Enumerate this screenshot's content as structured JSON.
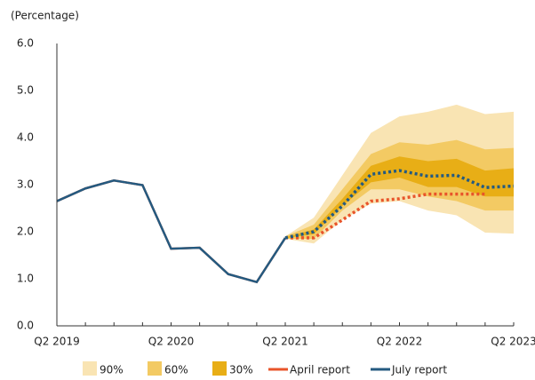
{
  "chart_data": {
    "type": "fan",
    "y_label": "(Percentage)",
    "categories": [
      "Q2 2019",
      null,
      null,
      null,
      "Q2 2020",
      null,
      null,
      null,
      "Q2 2021",
      null,
      null,
      null,
      "Q2 2022",
      null,
      null,
      null,
      "Q2 2023"
    ],
    "ylim": [
      0,
      6
    ],
    "yticks": [
      {
        "value": 0,
        "label": "0.0"
      },
      {
        "value": 1,
        "label": "1.0"
      },
      {
        "value": 2,
        "label": "2.0"
      },
      {
        "value": 3,
        "label": "3.0"
      },
      {
        "value": 4,
        "label": "4.0"
      },
      {
        "value": 5,
        "label": "5.0"
      },
      {
        "value": 6,
        "label": "6.0"
      }
    ],
    "bands": [
      {
        "name": "90%",
        "color": "#f9e4b3",
        "upper": [
          null,
          null,
          null,
          null,
          null,
          null,
          null,
          null,
          1.9,
          2.3,
          3.2,
          4.1,
          4.45,
          4.55,
          4.7,
          4.5,
          4.55
        ],
        "lower": [
          null,
          null,
          null,
          null,
          null,
          null,
          null,
          null,
          1.85,
          1.75,
          2.25,
          2.6,
          2.65,
          2.45,
          2.35,
          1.98,
          1.96
        ]
      },
      {
        "name": "60%",
        "color": "#f3ca63",
        "upper": [
          null,
          null,
          null,
          null,
          null,
          null,
          null,
          null,
          1.9,
          2.15,
          2.9,
          3.65,
          3.9,
          3.85,
          3.95,
          3.75,
          3.78
        ],
        "lower": [
          null,
          null,
          null,
          null,
          null,
          null,
          null,
          null,
          1.85,
          1.85,
          2.45,
          2.9,
          2.9,
          2.75,
          2.65,
          2.45,
          2.45
        ]
      },
      {
        "name": "30%",
        "color": "#e8ae16",
        "upper": [
          null,
          null,
          null,
          null,
          null,
          null,
          null,
          null,
          1.88,
          2.05,
          2.7,
          3.4,
          3.6,
          3.5,
          3.55,
          3.3,
          3.35
        ],
        "lower": [
          null,
          null,
          null,
          null,
          null,
          null,
          null,
          null,
          1.86,
          1.95,
          2.55,
          3.05,
          3.15,
          2.95,
          2.95,
          2.75,
          2.75
        ]
      }
    ],
    "series": [
      {
        "name": "April report",
        "color": "#e8542a",
        "values": [
          2.65,
          2.92,
          3.09,
          2.99,
          1.64,
          1.66,
          1.1,
          0.93,
          1.87,
          1.87,
          2.25,
          2.65,
          2.7,
          2.8,
          2.8,
          2.8,
          null
        ]
      },
      {
        "name": "July report",
        "color": "#245a80",
        "values": [
          2.65,
          2.92,
          3.09,
          2.99,
          1.64,
          1.66,
          1.1,
          0.93,
          1.87,
          2.0,
          2.55,
          3.22,
          3.3,
          3.18,
          3.2,
          2.94,
          2.97
        ]
      }
    ]
  }
}
